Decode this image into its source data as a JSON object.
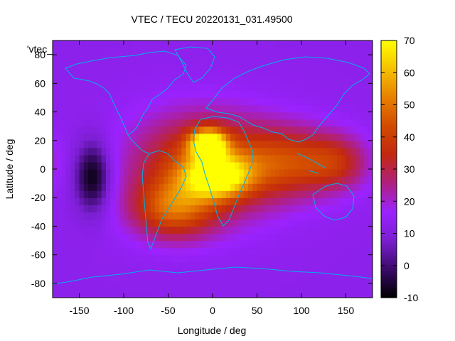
{
  "chart_data": {
    "type": "heatmap",
    "title": "VTEC / TECU 20220131_031.49500",
    "xlabel": "Longitude / deg",
    "ylabel": "Latitude / deg",
    "series_label": "'vtec_",
    "xlim": [
      -180,
      180
    ],
    "ylim": [
      -90,
      90
    ],
    "x_ticks": [
      -150,
      -100,
      -50,
      0,
      50,
      100,
      150
    ],
    "y_ticks": [
      -80,
      -60,
      -40,
      -20,
      0,
      20,
      40,
      60,
      80
    ],
    "colorbar": {
      "range": [
        -10,
        70
      ],
      "ticks": [
        -10,
        0,
        10,
        20,
        30,
        40,
        50,
        60,
        70
      ],
      "palette": [
        "#000000",
        "#3a0a6a",
        "#7a1fd0",
        "#9b22ff",
        "#b02080",
        "#c22810",
        "#d24a00",
        "#e88000",
        "#f5c000",
        "#ffff00"
      ]
    },
    "background_level": 13,
    "features": [
      {
        "name": "equatorial-anomaly-africa-north",
        "lon": -5,
        "lat": 18,
        "value": 66,
        "spread_lon": 14,
        "spread_lat": 7
      },
      {
        "name": "equatorial-anomaly-africa-south",
        "lon": 5,
        "lat": -5,
        "value": 55,
        "spread_lon": 25,
        "spread_lat": 10
      },
      {
        "name": "dayside-core",
        "lon": -10,
        "lat": 2,
        "value": 44,
        "spread_lon": 55,
        "spread_lat": 25
      },
      {
        "name": "south-atlantic-band",
        "lon": -45,
        "lat": -28,
        "value": 40,
        "spread_lon": 32,
        "spread_lat": 14
      },
      {
        "name": "indian-ocean-band",
        "lon": 85,
        "lat": 5,
        "value": 37,
        "spread_lon": 40,
        "spread_lat": 17
      },
      {
        "name": "west-pacific-band",
        "lon": 140,
        "lat": 5,
        "value": 30,
        "spread_lon": 25,
        "spread_lat": 13
      },
      {
        "name": "pacific-trough",
        "lon": -135,
        "lat": -5,
        "value": -10,
        "spread_lon": 14,
        "spread_lat": 17
      }
    ]
  }
}
